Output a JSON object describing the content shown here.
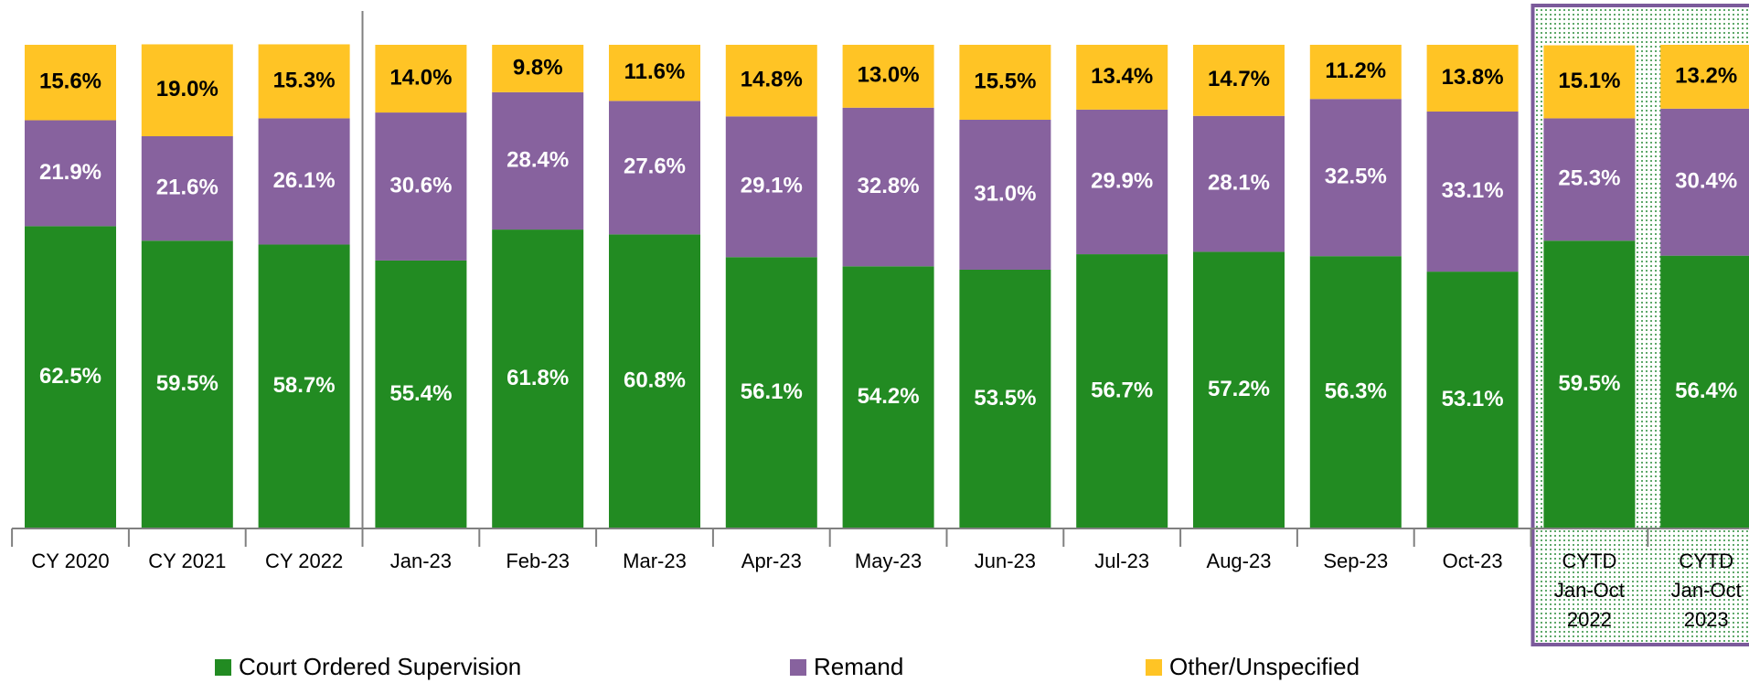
{
  "chart_data": {
    "type": "stacked_bar",
    "categories": [
      "CY 2020",
      "CY 2021",
      "CY 2022",
      "Jan-23",
      "Feb-23",
      "Mar-23",
      "Apr-23",
      "May-23",
      "Jun-23",
      "Jul-23",
      "Aug-23",
      "Sep-23",
      "Oct-23",
      "CYTD Jan-Oct 2022",
      "CYTD Jan-Oct 2023"
    ],
    "series": [
      {
        "name": "Court Ordered Supervision",
        "color": "#228b22",
        "values": [
          62.5,
          59.5,
          58.7,
          55.4,
          61.8,
          60.8,
          56.1,
          54.2,
          53.5,
          56.7,
          57.2,
          56.3,
          53.1,
          59.5,
          56.4
        ],
        "value_labels": [
          "62.5%",
          "59.5%",
          "58.7%",
          "55.4%",
          "61.8%",
          "60.8%",
          "56.1%",
          "54.2%",
          "53.5%",
          "56.7%",
          "57.2%",
          "56.3%",
          "53.1%",
          "59.5%",
          "56.4%"
        ]
      },
      {
        "name": "Remand",
        "color": "#87629e",
        "values": [
          21.9,
          21.6,
          26.1,
          30.6,
          28.4,
          27.6,
          29.1,
          32.8,
          31.0,
          29.9,
          28.1,
          32.5,
          33.1,
          25.3,
          30.4
        ],
        "value_labels": [
          "21.9%",
          "21.6%",
          "26.1%",
          "30.6%",
          "28.4%",
          "27.6%",
          "29.1%",
          "32.8%",
          "31.0%",
          "29.9%",
          "28.1%",
          "32.5%",
          "33.1%",
          "25.3%",
          "30.4%"
        ]
      },
      {
        "name": "Other/Unspecified",
        "color": "#ffc425",
        "values": [
          15.6,
          19.0,
          15.3,
          14.0,
          9.8,
          11.6,
          14.8,
          13.0,
          15.5,
          13.4,
          14.7,
          11.2,
          13.8,
          15.1,
          13.2
        ],
        "value_labels": [
          "15.6%",
          "19.0%",
          "15.3%",
          "14.0%",
          "9.8%",
          "11.6%",
          "14.8%",
          "13.0%",
          "15.5%",
          "13.4%",
          "14.7%",
          "11.2%",
          "13.8%",
          "15.1%",
          "13.2%"
        ]
      }
    ],
    "ylim": [
      0,
      100
    ]
  }
}
